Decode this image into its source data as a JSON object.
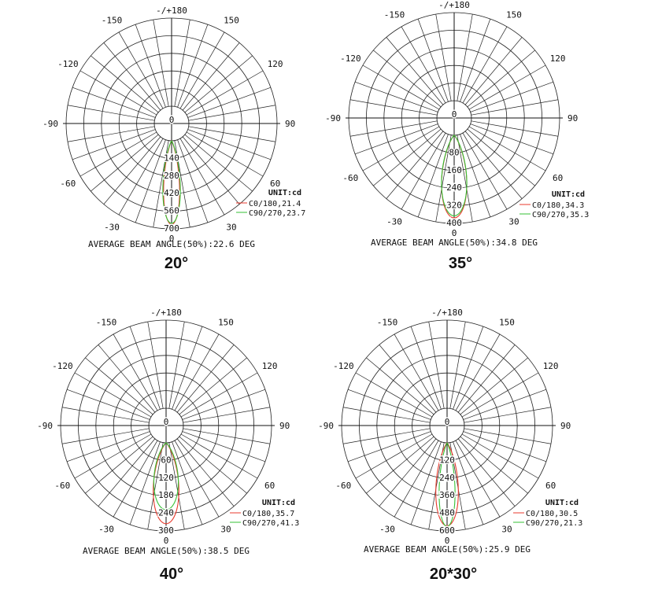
{
  "chart_data": [
    {
      "type": "polar",
      "caption": "20°",
      "angle_labels": [
        "-/+180",
        "150",
        "120",
        "90",
        "60",
        "30",
        "0",
        "-30",
        "-60",
        "-90",
        "-120",
        "-150"
      ],
      "radial_ticks": [
        "0",
        "140",
        "280",
        "420",
        "560",
        "700"
      ],
      "r_max": 700,
      "unit": "UNIT:cd",
      "series": [
        {
          "name": "C0/180,21.4",
          "color": "#e8392c",
          "peak": 700,
          "beam_angle": 21.4
        },
        {
          "name": "C90/270,23.7",
          "color": "#36c236",
          "peak": 690,
          "beam_angle": 23.7
        }
      ],
      "footer": "AVERAGE BEAM ANGLE(50%):22.6 DEG"
    },
    {
      "type": "polar",
      "caption": "35°",
      "angle_labels": [
        "-/+180",
        "150",
        "120",
        "90",
        "60",
        "30",
        "0",
        "-30",
        "-60",
        "-90",
        "-120",
        "-150"
      ],
      "radial_ticks": [
        "0",
        "80",
        "160",
        "240",
        "320",
        "400"
      ],
      "r_max": 400,
      "unit": "UNIT:cd",
      "series": [
        {
          "name": "C0/180,34.3",
          "color": "#e8392c",
          "peak": 395,
          "beam_angle": 34.3
        },
        {
          "name": "C90/270,35.3",
          "color": "#36c236",
          "peak": 385,
          "beam_angle": 35.3
        }
      ],
      "footer": "AVERAGE BEAM ANGLE(50%):34.8 DEG"
    },
    {
      "type": "polar",
      "caption": "40°",
      "angle_labels": [
        "-/+180",
        "150",
        "120",
        "90",
        "60",
        "30",
        "0",
        "-30",
        "-60",
        "-90",
        "-120",
        "-150"
      ],
      "radial_ticks": [
        "0",
        "60",
        "120",
        "180",
        "240",
        "300"
      ],
      "r_max": 300,
      "unit": "UNIT:cd",
      "series": [
        {
          "name": "C0/180,35.7",
          "color": "#e8392c",
          "peak": 290,
          "beam_angle": 35.7
        },
        {
          "name": "C90/270,41.3",
          "color": "#36c236",
          "peak": 240,
          "beam_angle": 41.3
        }
      ],
      "footer": "AVERAGE BEAM ANGLE(50%):38.5 DEG"
    },
    {
      "type": "polar",
      "caption": "20*30°",
      "angle_labels": [
        "-/+180",
        "150",
        "120",
        "90",
        "60",
        "30",
        "0",
        "-30",
        "-60",
        "-90",
        "-120",
        "-150"
      ],
      "radial_ticks": [
        "0",
        "120",
        "240",
        "360",
        "480",
        "600"
      ],
      "r_max": 600,
      "unit": "UNIT:cd",
      "series": [
        {
          "name": "C0/180,30.5",
          "color": "#e8392c",
          "peak": 595,
          "beam_angle": 30.5
        },
        {
          "name": "C90/270,21.3",
          "color": "#36c236",
          "peak": 600,
          "beam_angle": 21.3
        }
      ],
      "footer": "AVERAGE BEAM ANGLE(50%):25.9 DEG"
    }
  ]
}
